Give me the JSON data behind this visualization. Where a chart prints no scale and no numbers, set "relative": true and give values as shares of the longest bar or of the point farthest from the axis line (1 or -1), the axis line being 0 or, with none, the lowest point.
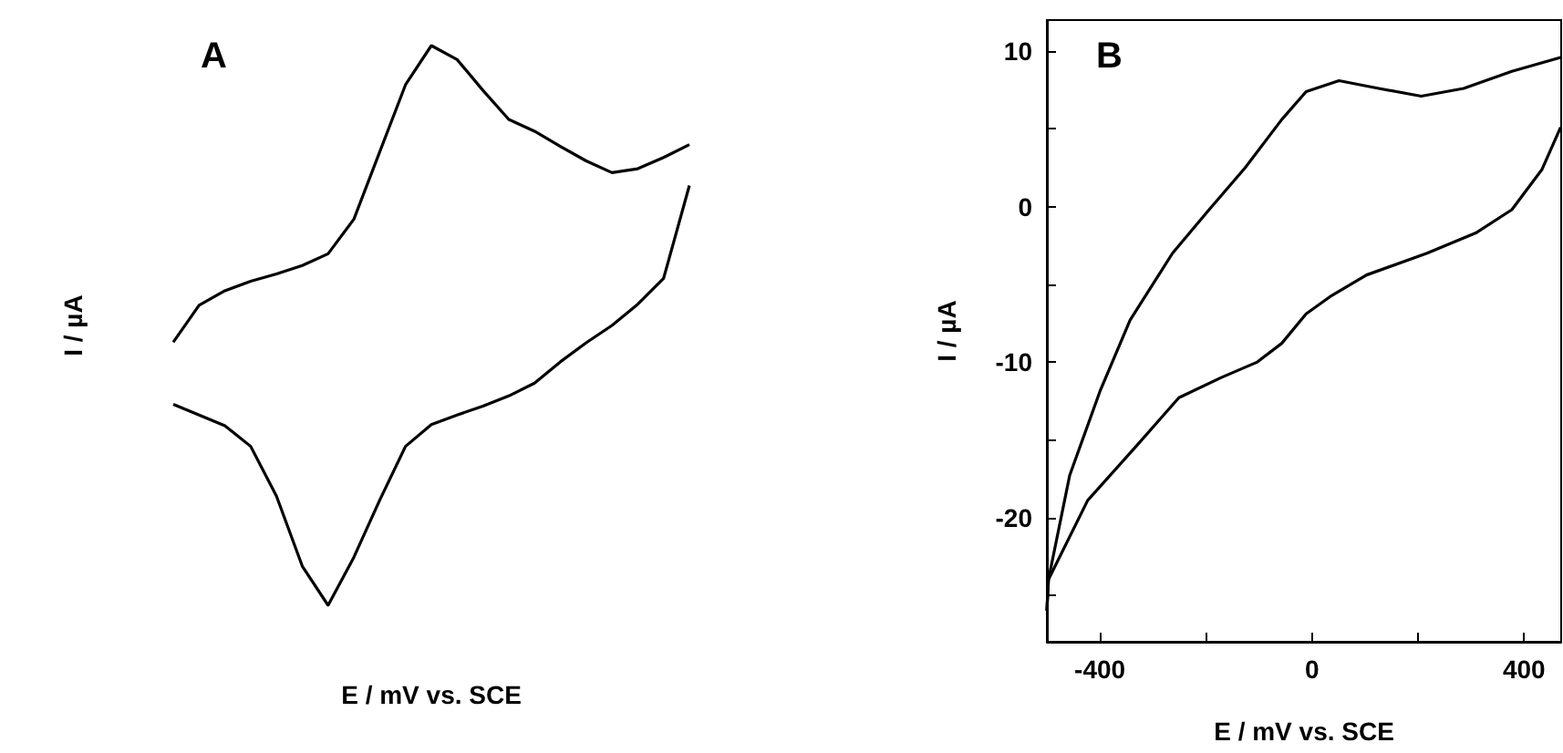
{
  "chart_data": [
    {
      "type": "line",
      "title": "A",
      "xlabel": "E / mV vs. SCE",
      "ylabel": "I / µA",
      "relative": true,
      "marker": "none",
      "categories": [
        null,
        null,
        null,
        null,
        null,
        null,
        null,
        null,
        null,
        null,
        null,
        null,
        null,
        null,
        null,
        null,
        null,
        null,
        null,
        null,
        null
      ],
      "series": [
        {
          "color": "#000000",
          "values": [
            0.47,
            0.536,
            0.562,
            0.579,
            0.592,
            0.607,
            0.628,
            0.69,
            0.81,
            0.93,
            1,
            0.975,
            0.92,
            0.868,
            0.847,
            0.82,
            0.794,
            0.773,
            0.78,
            0.8,
            0.823
          ]
        },
        {
          "color": "#000000",
          "values": [
            0.359,
            0.34,
            0.321,
            0.284,
            0.195,
            0.07,
            0,
            0.086,
            0.188,
            0.284,
            0.323,
            0.34,
            0.356,
            0.374,
            0.397,
            0.435,
            0.469,
            0.5,
            0.538,
            0.584,
            0.75
          ]
        }
      ]
    },
    {
      "type": "line",
      "title": "B",
      "xlabel": "E / mV vs. SCE",
      "ylabel": "I / µA",
      "marker": "none",
      "series": [
        {
          "color": "#000000",
          "x": [
            -500,
            -497,
            -457,
            -400,
            -343,
            -263,
            -194,
            -126,
            -57,
            -11,
            51,
            126,
            206,
            286,
            377,
            469
          ],
          "values": [
            -26,
            -24,
            -17.3,
            -11.9,
            -7.3,
            -3,
            -0.2,
            2.5,
            5.6,
            7.4,
            8.1,
            7.6,
            7.1,
            7.6,
            8.7,
            9.6
          ]
        },
        {
          "color": "#000000",
          "x": [
            -500,
            -497,
            -423,
            -331,
            -251,
            -171,
            -103,
            -57,
            -11,
            34,
            103,
            217,
            309,
            377,
            434,
            469
          ],
          "values": [
            -26,
            -24,
            -18.9,
            -15.4,
            -12.3,
            -11,
            -10,
            -8.8,
            -6.9,
            -5.8,
            -4.4,
            -3,
            -1.7,
            -0.2,
            2.4,
            5.1
          ]
        }
      ],
      "xlim": [
        -500,
        470
      ],
      "ylim": [
        -28,
        12
      ],
      "xticks": [
        -400,
        {
          "value": -200,
          "label": null
        },
        0,
        {
          "value": 200,
          "label": null
        },
        400
      ],
      "yticks": [
        {
          "value": -25,
          "label": null
        },
        -20,
        {
          "value": -15,
          "label": null
        },
        -10,
        {
          "value": -5,
          "label": null
        },
        0,
        {
          "value": 5,
          "label": null
        },
        10
      ]
    }
  ]
}
